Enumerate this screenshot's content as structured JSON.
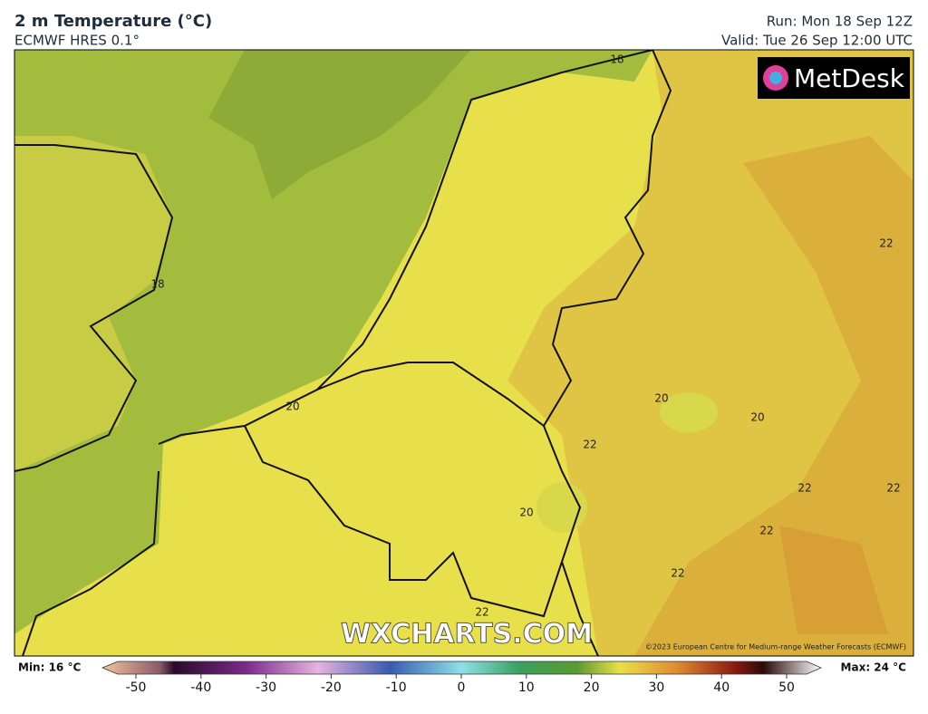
{
  "header": {
    "title": "2 m Temperature (°C)",
    "subtitle": "ECMWF HRES 0.1°",
    "run": "Run: Mon 18 Sep 12Z",
    "valid": "Valid: Tue 26 Sep 12:00 UTC"
  },
  "map": {
    "logo": "MetDesk",
    "watermark": "WXCHARTS.COM",
    "copyright": "©2023 European Centre for Medium-range Weather Forecasts (ECMWF)",
    "contour_labels": [
      18,
      18,
      20,
      20,
      20,
      20,
      22,
      22,
      22,
      22,
      22,
      22,
      22
    ]
  },
  "colorbar": {
    "min": "Min: 16 °C",
    "max": "Max: 24 °C",
    "ticks": [
      -50,
      -40,
      -30,
      -20,
      -10,
      0,
      10,
      20,
      30,
      40,
      50
    ]
  }
}
